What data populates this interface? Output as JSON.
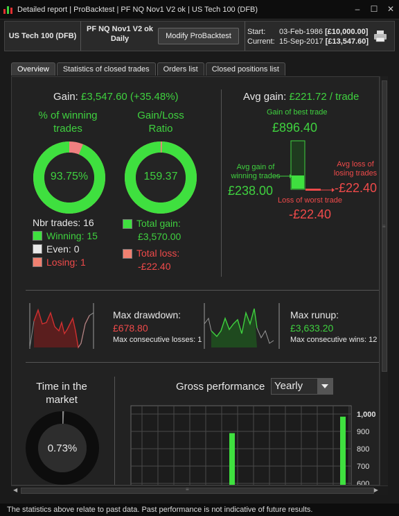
{
  "window": {
    "title": "Detailed report | ProBacktest | PF NQ Nov1 V2 ok | US Tech 100 (DFB)"
  },
  "header": {
    "instrument": "US Tech 100 (DFB)",
    "strategy_name": "PF NQ Nov1 V2 ok",
    "timeframe": "Daily",
    "modify_label": "Modify ProBacktest",
    "start_label": "Start:",
    "start_date": "03-Feb-1986",
    "start_capital": "[£10,000.00]",
    "current_label": "Current:",
    "current_date": "15-Sep-2017",
    "current_capital": "[£13,547.60]"
  },
  "tabs": [
    {
      "label": "Overview",
      "active": true
    },
    {
      "label": "Statistics of closed trades",
      "active": false
    },
    {
      "label": "Orders list",
      "active": false
    },
    {
      "label": "Closed positions list",
      "active": false
    }
  ],
  "summary": {
    "gain_label": "Gain:",
    "gain_value": "£3,547.60 (+35.48%)",
    "winning_pct_title_1": "% of winning",
    "winning_pct_title_2": "trades",
    "winning_pct": "93.75%",
    "winning_fraction": 0.9375,
    "ratio_title_1": "Gain/Loss",
    "ratio_title_2": "Ratio",
    "ratio_value": "159.37",
    "ratio_fraction": 0.9938,
    "nbr_trades": "Nbr trades: 16",
    "winning": "Winning: 15",
    "even": "Even: 0",
    "losing": "Losing: 1",
    "total_gain_label": "Total gain:",
    "total_gain_value": "£3,570.00",
    "total_loss_label": "Total loss:",
    "total_loss_value": "-£22.40"
  },
  "avg": {
    "title_label": "Avg gain:",
    "title_value": "£221.72 / trade",
    "best_trade_label": "Gain of best trade",
    "best_trade_value": "£896.40",
    "avg_win_label_1": "Avg gain of",
    "avg_win_label_2": "winning trades",
    "avg_win_value": "£238.00",
    "avg_loss_label_1": "Avg loss of",
    "avg_loss_label_2": "losing trades",
    "avg_loss_value": "-£22.40",
    "worst_trade_label": "Loss of worst trade",
    "worst_trade_value": "-£22.40"
  },
  "drawdown": {
    "title": "Max drawdown:",
    "value": "£678.80",
    "sub": "Max consecutive losses: 1"
  },
  "runup": {
    "title": "Max runup:",
    "value": "£3,633.20",
    "sub": "Max consecutive wins: 12"
  },
  "time_market": {
    "title_1": "Time in the",
    "title_2": "market",
    "value": "0.73%",
    "fraction": 0.0073
  },
  "gross": {
    "title": "Gross performance",
    "period": "Yearly"
  },
  "chart_data": {
    "type": "bar",
    "ylim": [
      600,
      1000
    ],
    "yticks": [
      "1,000",
      "900",
      "800",
      "700",
      "600"
    ],
    "bars": [
      {
        "value": 890
      },
      {
        "value": 985
      }
    ]
  },
  "footer": "The statistics above relate to past data. Past performance is not indicative of future results.",
  "colors": {
    "green": "#3fd13f",
    "red": "#f04a4a",
    "background": "#222222"
  }
}
